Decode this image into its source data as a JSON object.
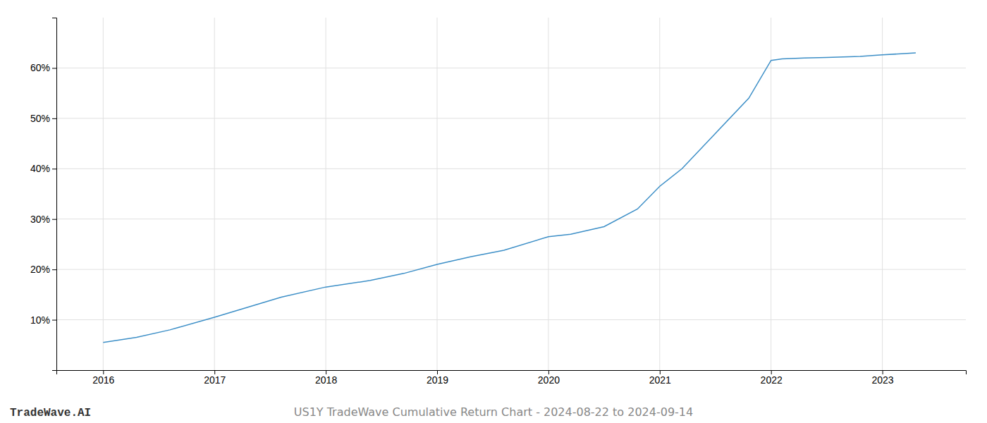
{
  "chart_data": {
    "type": "line",
    "annotations": [
      "TradeWave.AI",
      "US1Y TradeWave Cumulative Return Chart - 2024-08-22 to 2024-09-14"
    ],
    "x": [
      2016.0,
      2016.3,
      2016.6,
      2017.0,
      2017.3,
      2017.6,
      2018.0,
      2018.4,
      2018.7,
      2019.0,
      2019.3,
      2019.6,
      2020.0,
      2020.2,
      2020.5,
      2020.8,
      2021.0,
      2021.2,
      2021.5,
      2021.8,
      2022.0,
      2022.1,
      2022.3,
      2022.5,
      2022.8,
      2023.0,
      2023.3
    ],
    "values": [
      5.5,
      6.5,
      8.0,
      10.5,
      12.5,
      14.5,
      16.5,
      17.8,
      19.2,
      21.0,
      22.5,
      23.8,
      26.5,
      27.0,
      28.5,
      32.0,
      36.5,
      40.0,
      47.0,
      54.0,
      61.5,
      61.8,
      62.0,
      62.1,
      62.3,
      62.6,
      63.0
    ],
    "color": "#3d8fc7",
    "xlim": [
      2015.58,
      2023.75
    ],
    "ylim": [
      0,
      70
    ],
    "xticks": [
      2016,
      2017,
      2018,
      2019,
      2020,
      2021,
      2022,
      2023
    ],
    "yticks": [
      {
        "value": 10,
        "label": "10%"
      },
      {
        "value": 20,
        "label": "20%"
      },
      {
        "value": 30,
        "label": "30%"
      },
      {
        "value": 40,
        "label": "40%"
      },
      {
        "value": 50,
        "label": "50%"
      },
      {
        "value": 60,
        "label": "60%"
      }
    ],
    "grid": true
  }
}
